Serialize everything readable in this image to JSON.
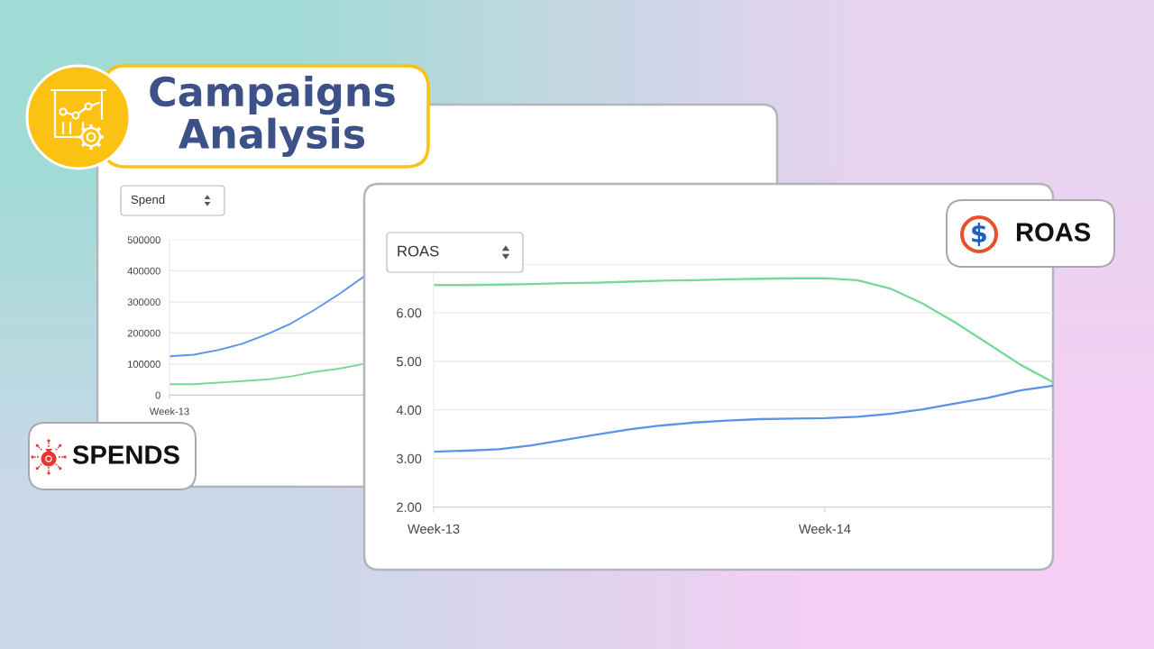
{
  "chart_data": [
    {
      "type": "line",
      "title": "Campaigns Analysis",
      "subtitle": "Spend",
      "annotations": [
        "SPENDS"
      ],
      "categories": [
        "Week-13",
        null,
        null,
        null,
        null,
        null,
        null,
        null,
        null
      ],
      "series": [
        {
          "color": "#5b93e8",
          "values": [
            125000,
            130000,
            145000,
            165000,
            195000,
            230000,
            275000,
            325000,
            380000
          ]
        },
        {
          "color": "#76d99a",
          "values": [
            35000,
            35000,
            40000,
            45000,
            50000,
            60000,
            75000,
            85000,
            100000
          ]
        }
      ],
      "ylim": [
        0,
        500000
      ],
      "yticks": [
        0,
        100000,
        200000,
        300000,
        400000,
        500000
      ],
      "grid": "y"
    },
    {
      "type": "line",
      "subtitle": "ROAS",
      "annotations": [
        "ROAS"
      ],
      "categories": [
        "Week-13",
        null,
        null,
        null,
        null,
        null,
        null,
        null,
        null,
        null,
        null,
        null,
        "Week-14",
        null,
        null,
        null,
        null,
        null,
        null,
        null
      ],
      "series": [
        {
          "color": "#5b93e8",
          "values": [
            3.14,
            3.16,
            3.19,
            3.27,
            3.38,
            3.49,
            3.6,
            3.68,
            3.74,
            3.78,
            3.81,
            3.82,
            3.83,
            3.86,
            3.92,
            4.01,
            4.13,
            4.25,
            4.4,
            4.5
          ]
        },
        {
          "color": "#76d99a",
          "values": [
            6.57,
            6.57,
            6.58,
            6.59,
            6.61,
            6.62,
            6.64,
            6.66,
            6.67,
            6.69,
            6.7,
            6.71,
            6.71,
            6.67,
            6.5,
            6.19,
            5.8,
            5.37,
            4.93,
            4.57
          ]
        }
      ],
      "ylim": [
        2,
        7
      ],
      "yticks": [
        {
          "value": 2,
          "label": "2.00"
        },
        {
          "value": 3,
          "label": "3.00"
        },
        {
          "value": 4,
          "label": "4.00"
        },
        {
          "value": 5,
          "label": "5.00"
        },
        {
          "value": 6,
          "label": "6.00"
        },
        {
          "value": 7,
          "label": null
        }
      ],
      "grid": "y"
    }
  ]
}
